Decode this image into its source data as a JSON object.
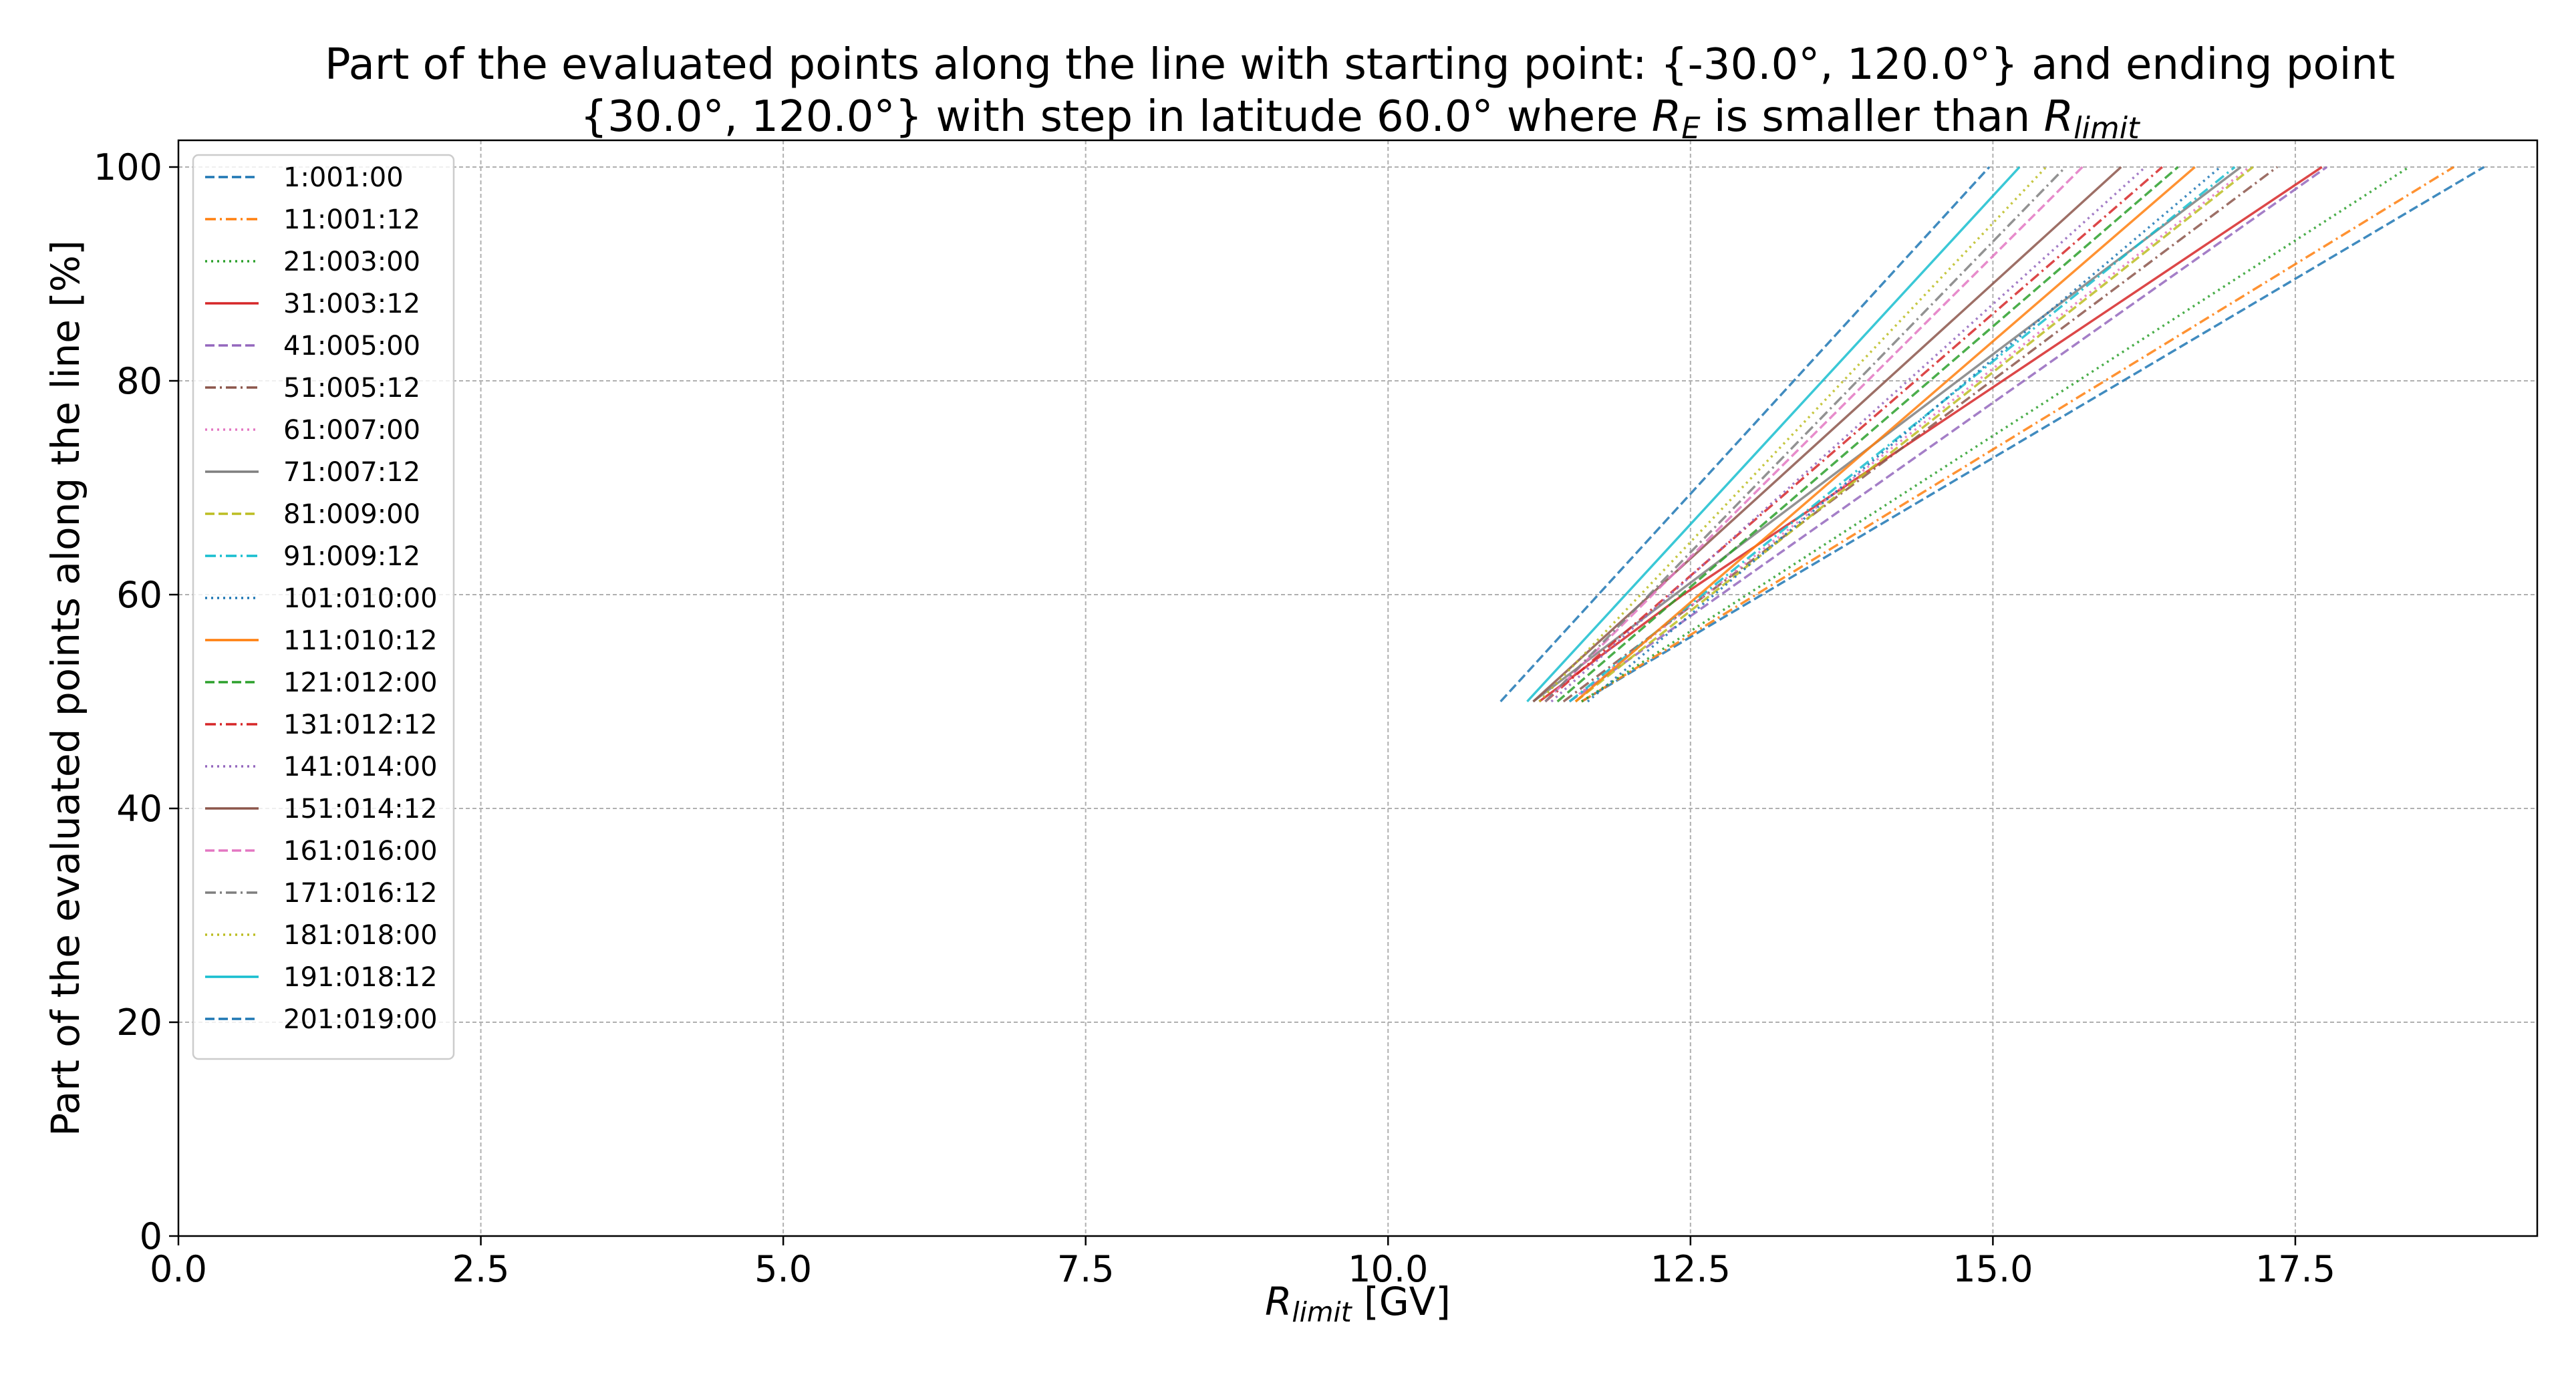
{
  "chart_data": {
    "type": "line",
    "title": [
      [
        {
          "text": "Part of the evaluated points along the line with starting point: {-30.0°, 120.0°} and ending point",
          "style": "normal"
        }
      ],
      [
        {
          "text": "{30.0°, 120.0°} with step in latitude 60.0° where ",
          "style": "normal"
        },
        {
          "text": "R",
          "style": "italic"
        },
        {
          "text": "E",
          "style": "sub"
        },
        {
          "text": " is smaller than ",
          "style": "normal"
        },
        {
          "text": "R",
          "style": "italic"
        },
        {
          "text": "limit",
          "style": "sub"
        }
      ]
    ],
    "xlabel": [
      {
        "text": "R",
        "style": "italic"
      },
      {
        "text": "limit",
        "style": "sub"
      },
      {
        "text": " [GV]",
        "style": "normal"
      }
    ],
    "ylabel": "Part of the evaluated points along the line  [%]",
    "xlim": [
      0,
      19.5
    ],
    "ylim": [
      0,
      102.5
    ],
    "xticks": [
      {
        "value": 0,
        "label": "0.0"
      },
      {
        "value": 2.5,
        "label": "2.5"
      },
      {
        "value": 5,
        "label": "5.0"
      },
      {
        "value": 7.5,
        "label": "7.5"
      },
      {
        "value": 10,
        "label": "10.0"
      },
      {
        "value": 12.5,
        "label": "12.5"
      },
      {
        "value": 15,
        "label": "15.0"
      },
      {
        "value": 17.5,
        "label": "17.5"
      }
    ],
    "yticks": [
      0,
      20,
      40,
      60,
      80,
      100
    ],
    "grid": true,
    "legend": "upper left",
    "series": [
      {
        "name": "1:001:00",
        "color": "#1f77b4",
        "linestyle": "dashed",
        "x": [
          11.6,
          19.06
        ],
        "values": [
          50,
          100
        ]
      },
      {
        "name": "11:001:12",
        "color": "#ff7f0e",
        "linestyle": "dashdot",
        "x": [
          11.6,
          18.81
        ],
        "values": [
          50,
          100
        ]
      },
      {
        "name": "21:003:00",
        "color": "#2ca02c",
        "linestyle": "dotted",
        "x": [
          11.6,
          18.44
        ],
        "values": [
          50,
          100
        ]
      },
      {
        "name": "31:003:12",
        "color": "#d62728",
        "linestyle": "solid",
        "x": [
          11.25,
          12.44,
          17.72
        ],
        "values": [
          50,
          60,
          100
        ]
      },
      {
        "name": "41:005:00",
        "color": "#9467bd",
        "linestyle": "dashed",
        "x": [
          11.5,
          17.76
        ],
        "values": [
          50,
          100
        ]
      },
      {
        "name": "51:005:12",
        "color": "#8c564b",
        "linestyle": "dashdot",
        "x": [
          11.45,
          17.35
        ],
        "values": [
          50,
          100
        ]
      },
      {
        "name": "61:007:00",
        "color": "#e377c2",
        "linestyle": "dotted",
        "x": [
          11.5,
          17.12
        ],
        "values": [
          50,
          100
        ]
      },
      {
        "name": "71:007:12",
        "color": "#7f7f7f",
        "linestyle": "solid",
        "x": [
          11.2,
          17.05
        ],
        "values": [
          50,
          100
        ]
      },
      {
        "name": "81:009:00",
        "color": "#bcbd22",
        "linestyle": "dashed",
        "x": [
          11.55,
          17.15
        ],
        "values": [
          50,
          100
        ]
      },
      {
        "name": "91:009:12",
        "color": "#17becf",
        "linestyle": "dashdot",
        "x": [
          11.5,
          17.0
        ],
        "values": [
          50,
          100
        ]
      },
      {
        "name": "101:010:00",
        "color": "#1f77b4",
        "linestyle": "dotted",
        "x": [
          11.65,
          16.88
        ],
        "values": [
          50,
          100
        ]
      },
      {
        "name": "111:010:12",
        "color": "#ff7f0e",
        "linestyle": "solid",
        "x": [
          11.55,
          16.67
        ],
        "values": [
          50,
          100
        ]
      },
      {
        "name": "121:012:00",
        "color": "#2ca02c",
        "linestyle": "dashed",
        "x": [
          11.4,
          16.53
        ],
        "values": [
          50,
          100
        ]
      },
      {
        "name": "131:012:12",
        "color": "#d62728",
        "linestyle": "dashdot",
        "x": [
          11.3,
          16.4
        ],
        "values": [
          50,
          100
        ]
      },
      {
        "name": "141:014:00",
        "color": "#9467bd",
        "linestyle": "dotted",
        "x": [
          11.35,
          16.26
        ],
        "values": [
          50,
          100
        ]
      },
      {
        "name": "151:014:12",
        "color": "#8c564b",
        "linestyle": "solid",
        "x": [
          11.2,
          16.06
        ],
        "values": [
          50,
          100
        ]
      },
      {
        "name": "161:016:00",
        "color": "#e377c2",
        "linestyle": "dashed",
        "x": [
          11.3,
          15.74
        ],
        "values": [
          50,
          100
        ]
      },
      {
        "name": "171:016:12",
        "color": "#7f7f7f",
        "linestyle": "dashdot",
        "x": [
          11.3,
          15.6
        ],
        "values": [
          50,
          100
        ]
      },
      {
        "name": "181:018:00",
        "color": "#bcbd22",
        "linestyle": "dotted",
        "x": [
          11.25,
          15.44
        ],
        "values": [
          50,
          100
        ]
      },
      {
        "name": "191:018:12",
        "color": "#17becf",
        "linestyle": "solid",
        "x": [
          11.15,
          15.22
        ],
        "values": [
          50,
          100
        ]
      },
      {
        "name": "201:019:00",
        "color": "#1f77b4",
        "linestyle": "dashed",
        "x": [
          10.93,
          14.97
        ],
        "values": [
          50,
          100
        ]
      }
    ]
  }
}
